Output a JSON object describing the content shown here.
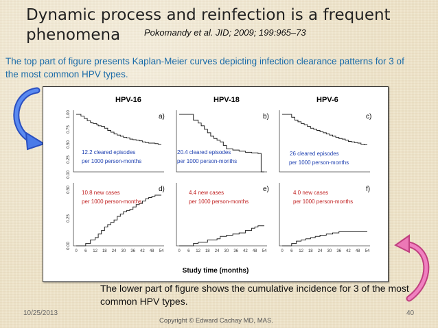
{
  "slide": {
    "title": "Dynamic process and reinfection is a frequent phenomena",
    "title_line1": "Dynamic process and reinfection is a frequent",
    "title_line2": "phenomena",
    "citation": "Pokomandy et al. JID; 2009; 199:965–73",
    "top_note": "The top part of figure presents Kaplan-Meier curves depicting infection clearance patterns for 3 of the most common HPV types.",
    "bottom_note": "The lower part of figure shows the cumulative incidence for 3 of the most common HPV types.",
    "date": "10/25/2013",
    "page_number": "40",
    "copyright": "Copyright © Edward Cachay MD, MAS."
  },
  "figure": {
    "panel_titles": [
      "HPV-16",
      "HPV-18",
      "HPV-6"
    ],
    "panel_letters": [
      "a)",
      "b)",
      "c)",
      "d)",
      "e)",
      "f)"
    ],
    "top_yticks": [
      "1.00",
      "0.75",
      "0.50",
      "0.25",
      "0.00"
    ],
    "bottom_yticks": [
      "0.50",
      "0.25",
      "0.00"
    ],
    "xticks": [
      "0",
      "6",
      "12",
      "18",
      "24",
      "30",
      "36",
      "42",
      "48",
      "54"
    ],
    "xlabel": "Study time (months)",
    "top_annotations": [
      {
        "line1": "12.2 cleared episodes",
        "line2": "per 1000 person-months"
      },
      {
        "line1": "20.4 cleared episodes",
        "line2": "per 1000 person-months"
      },
      {
        "line1": "26 cleared episodes",
        "line2": "per 1000 person-months"
      }
    ],
    "bottom_annotations": [
      {
        "line1": "10.8 new cases",
        "line2": "per 1000 person-months"
      },
      {
        "line1": "4.4 new cases",
        "line2": "per 1000 person-months"
      },
      {
        "line1": "4.0 new cases",
        "line2": "per 1000 person-months"
      }
    ],
    "colors": {
      "annotation_top": "#1d3fb0",
      "annotation_bottom": "#c02020",
      "arrow_left": "#3a6ee0",
      "arrow_right": "#e06aa8"
    }
  },
  "chart_data": [
    {
      "type": "line",
      "title": "HPV-16",
      "panel": "a)",
      "ylim": [
        0,
        1
      ],
      "x": [
        0,
        3,
        5,
        7,
        9,
        10,
        11,
        13,
        14,
        16,
        18,
        20,
        22,
        24,
        26,
        28,
        30,
        32,
        34,
        36,
        38,
        40,
        42,
        44,
        46,
        48,
        50,
        52,
        54
      ],
      "values": [
        1.0,
        0.97,
        0.93,
        0.89,
        0.86,
        0.85,
        0.84,
        0.82,
        0.8,
        0.79,
        0.76,
        0.72,
        0.69,
        0.66,
        0.64,
        0.62,
        0.6,
        0.59,
        0.57,
        0.56,
        0.55,
        0.54,
        0.52,
        0.51,
        0.5,
        0.5,
        0.49,
        0.48,
        0.48
      ]
    },
    {
      "type": "line",
      "title": "HPV-18",
      "panel": "b)",
      "ylim": [
        0,
        1
      ],
      "x": [
        0,
        6,
        9,
        12,
        14,
        16,
        18,
        20,
        22,
        24,
        26,
        28,
        30,
        34,
        38,
        42,
        46,
        50,
        52,
        54
      ],
      "values": [
        1.0,
        1.0,
        0.9,
        0.85,
        0.8,
        0.74,
        0.68,
        0.62,
        0.58,
        0.55,
        0.52,
        0.46,
        0.4,
        0.38,
        0.36,
        0.34,
        0.33,
        0.32,
        0.0,
        0.0
      ]
    },
    {
      "type": "line",
      "title": "HPV-6",
      "panel": "c)",
      "ylim": [
        0,
        1
      ],
      "x": [
        0,
        4,
        6,
        8,
        10,
        12,
        14,
        16,
        18,
        20,
        22,
        24,
        26,
        28,
        30,
        32,
        34,
        36,
        38,
        40,
        42,
        44,
        46,
        48,
        50,
        52,
        54
      ],
      "values": [
        1.0,
        1.0,
        0.95,
        0.9,
        0.87,
        0.84,
        0.82,
        0.79,
        0.76,
        0.74,
        0.72,
        0.7,
        0.68,
        0.66,
        0.64,
        0.62,
        0.6,
        0.58,
        0.57,
        0.55,
        0.53,
        0.52,
        0.51,
        0.5,
        0.48,
        0.47,
        0.47
      ]
    },
    {
      "type": "line",
      "panel": "d)",
      "ylim": [
        0,
        0.5
      ],
      "x": [
        0,
        3,
        6,
        9,
        12,
        14,
        16,
        18,
        20,
        22,
        24,
        26,
        28,
        30,
        32,
        34,
        36,
        38,
        40,
        42,
        44,
        46,
        48,
        50,
        52,
        54
      ],
      "values": [
        0.0,
        0.0,
        0.02,
        0.05,
        0.07,
        0.1,
        0.13,
        0.16,
        0.18,
        0.2,
        0.22,
        0.25,
        0.27,
        0.29,
        0.3,
        0.31,
        0.33,
        0.35,
        0.36,
        0.38,
        0.4,
        0.41,
        0.42,
        0.43,
        0.43,
        0.43
      ]
    },
    {
      "type": "line",
      "panel": "e)",
      "ylim": [
        0,
        0.5
      ],
      "x": [
        0,
        6,
        9,
        12,
        18,
        24,
        26,
        30,
        34,
        38,
        42,
        46,
        48,
        50,
        54
      ],
      "values": [
        0.0,
        0.0,
        0.02,
        0.03,
        0.05,
        0.06,
        0.08,
        0.09,
        0.1,
        0.11,
        0.13,
        0.15,
        0.16,
        0.17,
        0.17
      ]
    },
    {
      "type": "line",
      "panel": "f)",
      "ylim": [
        0,
        0.5
      ],
      "x": [
        0,
        3,
        6,
        9,
        12,
        15,
        18,
        21,
        24,
        28,
        32,
        36,
        40,
        44,
        48,
        54
      ],
      "values": [
        0.0,
        0.0,
        0.02,
        0.04,
        0.05,
        0.06,
        0.07,
        0.08,
        0.09,
        0.1,
        0.11,
        0.12,
        0.12,
        0.12,
        0.12,
        0.12
      ]
    }
  ]
}
